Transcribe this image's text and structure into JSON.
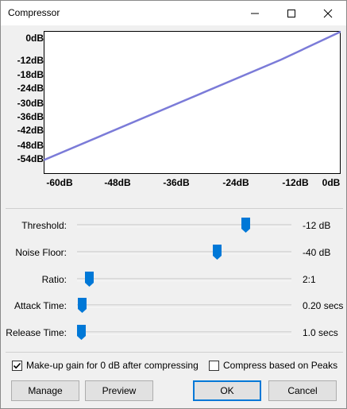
{
  "window": {
    "title": "Compressor"
  },
  "icons": {
    "minimize": "minimize-icon",
    "maximize": "maximize-icon",
    "close": "close-icon",
    "check": "checkmark-icon",
    "thumb": "slider-thumb-icon"
  },
  "colors": {
    "curve": "#7b7bd8",
    "thumb": "#0078d7",
    "default_border": "#0078d7"
  },
  "graph": {
    "y_labels": [
      "0dB",
      "-12dB",
      "-18dB",
      "-24dB",
      "-30dB",
      "-36dB",
      "-42dB",
      "-48dB",
      "-54dB"
    ],
    "x_labels": [
      "-60dB",
      "-48dB",
      "-36dB",
      "-24dB",
      "-12dB",
      "0dB"
    ]
  },
  "chart_data": {
    "type": "line",
    "x": [
      -60,
      -12,
      0
    ],
    "series": [
      {
        "values": [
          -54.2,
          -12,
          -0.3
        ]
      }
    ],
    "xlim": [
      -60,
      0
    ],
    "ylim": [
      -60,
      0
    ]
  },
  "controls": {
    "threshold": {
      "label": "Threshold:",
      "value": "-12 dB",
      "position": 0.8
    },
    "noise_floor": {
      "label": "Noise Floor:",
      "value": "-40 dB",
      "position": 0.66
    },
    "ratio": {
      "label": "Ratio:",
      "value": "2:1",
      "position": 0.04
    },
    "attack_time": {
      "label": "Attack Time:",
      "value": "0.20 secs",
      "position": 0.005
    },
    "release_time": {
      "label": "Release Time:",
      "value": "1.0 secs",
      "position": 0.0
    }
  },
  "options": {
    "makeup_gain": {
      "label": "Make-up gain for 0 dB after compressing",
      "checked": true
    },
    "compress_peaks": {
      "label": "Compress based on Peaks",
      "checked": false
    }
  },
  "buttons": {
    "manage": "Manage",
    "preview": "Preview",
    "ok": "OK",
    "cancel": "Cancel"
  }
}
